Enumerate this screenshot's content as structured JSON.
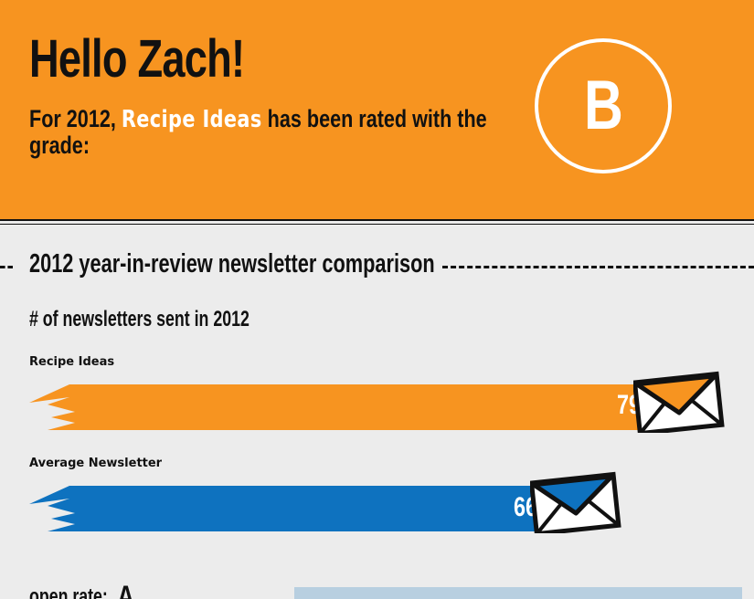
{
  "header": {
    "greeting": "Hello Zach!",
    "rating_prefix": "For 2012,",
    "newsletter_name": "Recipe Ideas",
    "rating_suffix": "has been rated with the grade:",
    "grade": "B"
  },
  "section": {
    "title": "2012 year-in-review newsletter comparison"
  },
  "metric": {
    "title": "# of newsletters sent in 2012",
    "max_value": 100
  },
  "bars": [
    {
      "label": "Recipe Ideas",
      "value": 79,
      "color": "#f79420"
    },
    {
      "label": "Average Newsletter",
      "value": 66,
      "color": "#0e72bf"
    }
  ],
  "next_metric": {
    "label": "open rate:",
    "grade": "A"
  },
  "colors": {
    "brand_orange": "#f79420",
    "average_blue": "#0e72bf",
    "text": "#111111",
    "background": "#ececec"
  }
}
